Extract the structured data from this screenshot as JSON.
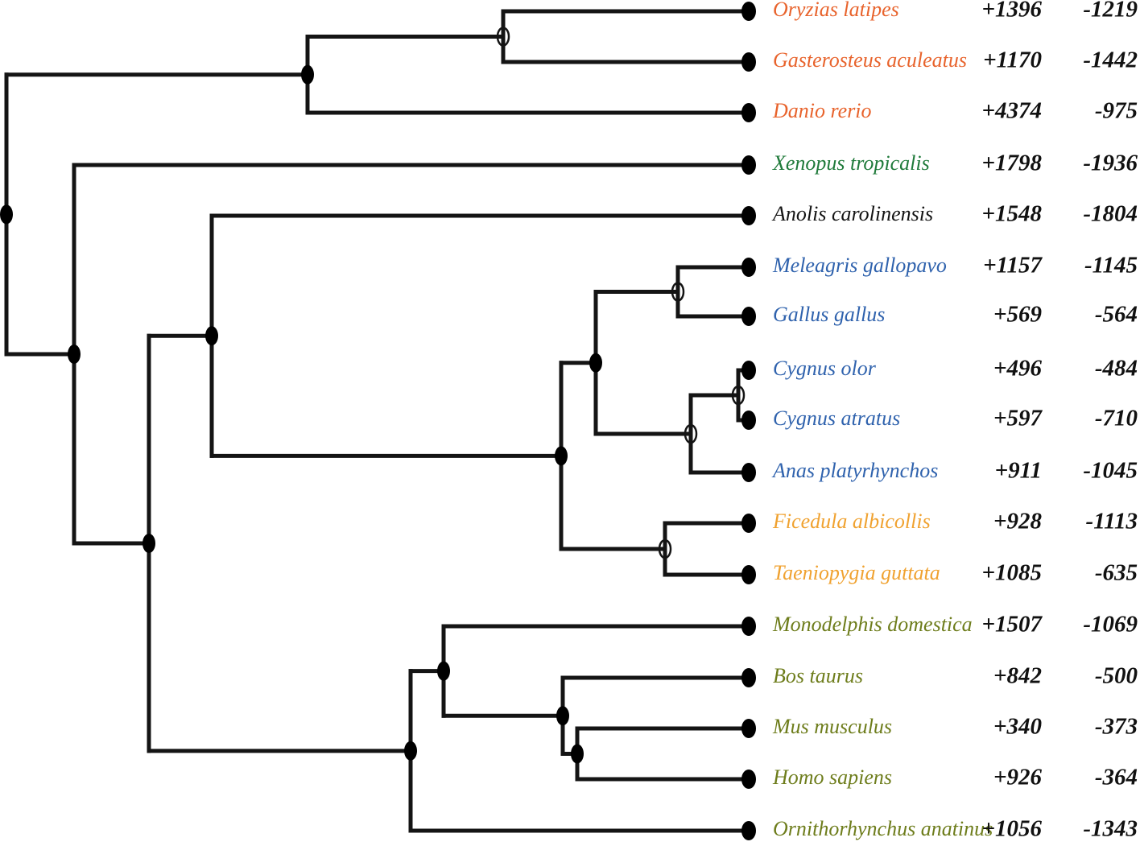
{
  "columns": {
    "gain_sign": "+",
    "loss_sign": "-"
  },
  "colors": {
    "fish": "#e8632c",
    "amphibian": "#1f7a3a",
    "reptile": "#141414",
    "galliformes_anseriformes": "#2f62ad",
    "passeriformes": "#f0a230",
    "mammals": "#6e7d1c"
  },
  "taxa": [
    {
      "name": "Oryzias latipes",
      "gain": "+1396",
      "loss": "-1219",
      "group": "fish"
    },
    {
      "name": "Gasterosteus aculeatus",
      "gain": "+1170",
      "loss": "-1442",
      "group": "fish"
    },
    {
      "name": "Danio rerio",
      "gain": "+4374",
      "loss": "-975",
      "group": "fish"
    },
    {
      "name": "Xenopus tropicalis",
      "gain": "+1798",
      "loss": "-1936",
      "group": "amphibian"
    },
    {
      "name": "Anolis carolinensis",
      "gain": "+1548",
      "loss": "-1804",
      "group": "reptile"
    },
    {
      "name": "Meleagris gallopavo",
      "gain": "+1157",
      "loss": "-1145",
      "group": "galliformes_anseriformes"
    },
    {
      "name": "Gallus gallus",
      "gain": "+569",
      "loss": "-564",
      "group": "galliformes_anseriformes"
    },
    {
      "name": "Cygnus olor",
      "gain": "+496",
      "loss": "-484",
      "group": "galliformes_anseriformes"
    },
    {
      "name": "Cygnus atratus",
      "gain": "+597",
      "loss": "-710",
      "group": "galliformes_anseriformes"
    },
    {
      "name": "Anas platyrhynchos",
      "gain": "+911",
      "loss": "-1045",
      "group": "galliformes_anseriformes"
    },
    {
      "name": "Ficedula albicollis",
      "gain": "+928",
      "loss": "-1113",
      "group": "passeriformes"
    },
    {
      "name": "Taeniopygia guttata",
      "gain": "+1085",
      "loss": "-635",
      "group": "passeriformes"
    },
    {
      "name": "Monodelphis domestica",
      "gain": "+1507",
      "loss": "-1069",
      "group": "mammals"
    },
    {
      "name": "Bos taurus",
      "gain": "+842",
      "loss": "-500",
      "group": "mammals"
    },
    {
      "name": "Mus musculus",
      "gain": "+340",
      "loss": "-373",
      "group": "mammals"
    },
    {
      "name": "Homo sapiens",
      "gain": "+926",
      "loss": "-364",
      "group": "mammals"
    },
    {
      "name": "Ornithorhynchus anatinus",
      "gain": "+1056",
      "loss": "-1343",
      "group": "mammals"
    }
  ],
  "tree": {
    "support": "filled",
    "children": [
      {
        "support": "filled",
        "children": [
          {
            "support": "open",
            "children": [
              {
                "tip": 0
              },
              {
                "tip": 1
              }
            ]
          },
          {
            "tip": 2
          }
        ]
      },
      {
        "support": "filled",
        "children": [
          {
            "tip": 3
          },
          {
            "support": "filled",
            "children": [
              {
                "support": "filled",
                "children": [
                  {
                    "tip": 4
                  },
                  {
                    "support": "filled",
                    "children": [
                      {
                        "support": "filled",
                        "children": [
                          {
                            "support": "open",
                            "children": [
                              {
                                "tip": 5
                              },
                              {
                                "tip": 6
                              }
                            ]
                          },
                          {
                            "support": "open",
                            "children": [
                              {
                                "support": "open",
                                "children": [
                                  {
                                    "tip": 7
                                  },
                                  {
                                    "tip": 8
                                  }
                                ]
                              },
                              {
                                "tip": 9
                              }
                            ]
                          }
                        ]
                      },
                      {
                        "support": "open",
                        "children": [
                          {
                            "tip": 10
                          },
                          {
                            "tip": 11
                          }
                        ]
                      }
                    ]
                  }
                ]
              },
              {
                "support": "filled",
                "children": [
                  {
                    "support": "filled",
                    "children": [
                      {
                        "tip": 12
                      },
                      {
                        "support": "filled",
                        "children": [
                          {
                            "tip": 13
                          },
                          {
                            "support": "filled",
                            "children": [
                              {
                                "tip": 14
                              },
                              {
                                "tip": 15
                              }
                            ]
                          }
                        ]
                      }
                    ]
                  },
                  {
                    "tip": 16
                  }
                ]
              }
            ]
          }
        ]
      }
    ]
  }
}
